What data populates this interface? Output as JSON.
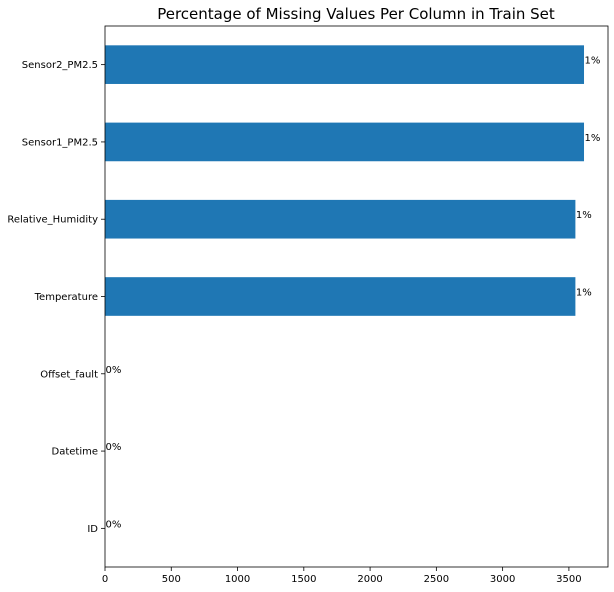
{
  "chart_data": {
    "type": "bar",
    "orientation": "horizontal",
    "title": "Percentage of Missing Values Per Column in Train Set",
    "xlabel": "",
    "ylabel": "",
    "categories": [
      "Sensor2_PM2.5",
      "Sensor1_PM2.5",
      "Relative_Humidity",
      "Temperature",
      "Offset_fault",
      "Datetime",
      "ID"
    ],
    "values": [
      3614,
      3614,
      3549,
      3549,
      0,
      0,
      0
    ],
    "data_labels": [
      "1%",
      "1%",
      "1%",
      "1%",
      "0%",
      "0%",
      "0%"
    ],
    "x_ticks": [
      0,
      500,
      1000,
      1500,
      2000,
      2500,
      3000,
      3500
    ],
    "tick_labels": [
      "0",
      "500",
      "1000",
      "1500",
      "2000",
      "2500",
      "3000",
      "3500"
    ],
    "xlim": [
      0,
      3795
    ],
    "grid": false,
    "legend": "none",
    "bar_color": "#1f77b4"
  }
}
